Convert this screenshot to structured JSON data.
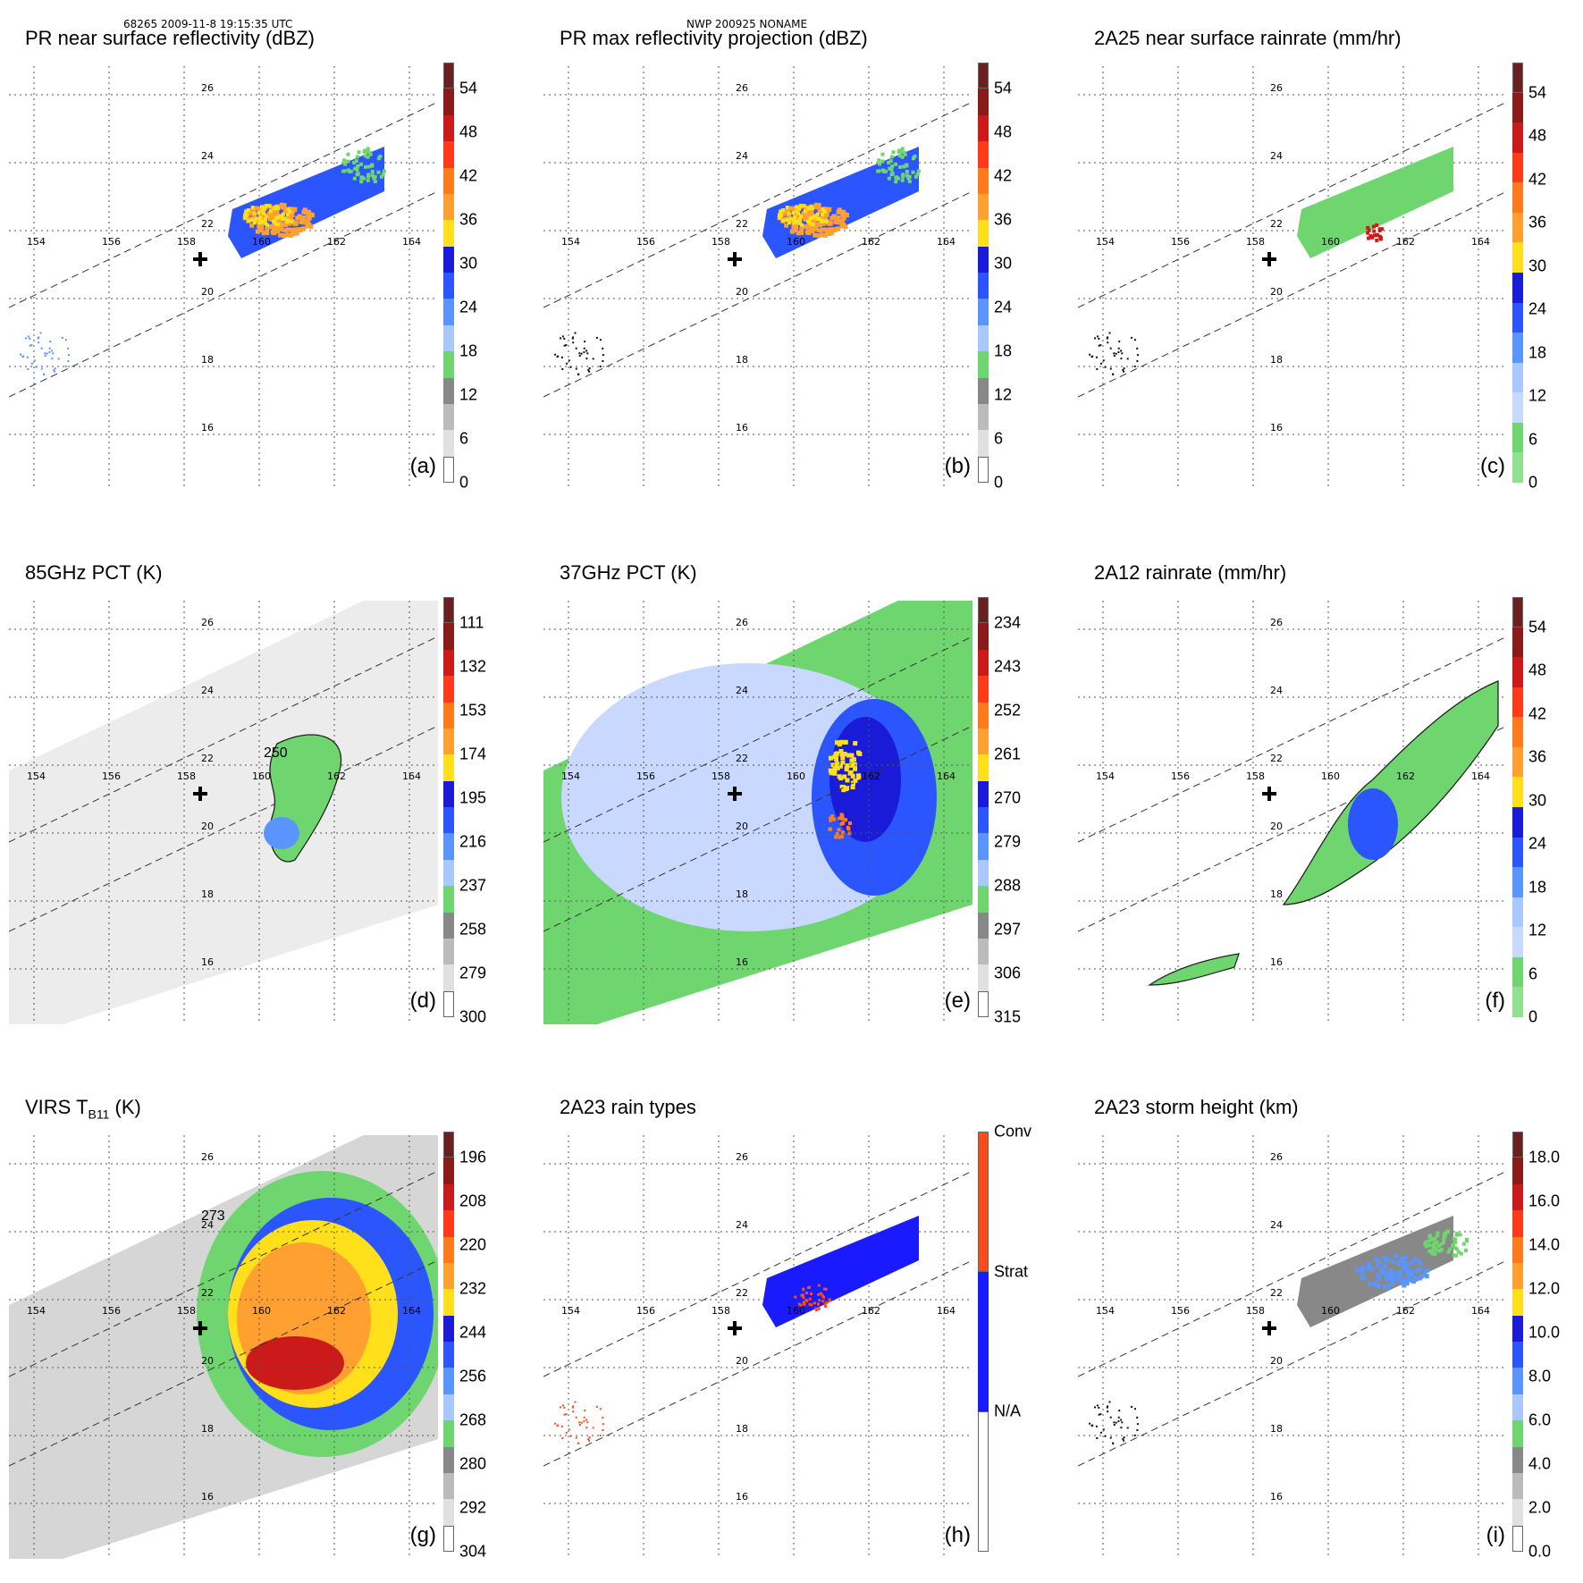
{
  "header": {
    "left": "68265 2009-11-8 19:15:35 UTC",
    "center": "NWP 200925 NONAME"
  },
  "axes": {
    "lon_labels": [
      "154",
      "156",
      "158",
      "160",
      "162",
      "164"
    ],
    "lat_labels": [
      "26",
      "24",
      "22",
      "20",
      "18",
      "16"
    ]
  },
  "panels": [
    {
      "id": "a",
      "title": "PR near surface reflectivity (dBZ)",
      "label": "(a)",
      "ticks": [
        "54",
        "48",
        "42",
        "36",
        "30",
        "24",
        "18",
        "12",
        "6",
        "0"
      ],
      "colors": [
        "#6b1f1f",
        "#8b1a1a",
        "#cc1a1a",
        "#ff3a1a",
        "#ff7a1a",
        "#ffa030",
        "#ffe01a",
        "#1a1ad9",
        "#2a55ff",
        "#5a95ff",
        "#a8c8ff",
        "#6fd66f",
        "#888888",
        "#bbbbbb",
        "#e0e0e0",
        "#ffffff"
      ]
    },
    {
      "id": "b",
      "title": "PR max reflectivity projection (dBZ)",
      "label": "(b)",
      "ticks": [
        "54",
        "48",
        "42",
        "36",
        "30",
        "24",
        "18",
        "12",
        "6",
        "0"
      ],
      "colors": [
        "#6b1f1f",
        "#8b1a1a",
        "#cc1a1a",
        "#ff3a1a",
        "#ff7a1a",
        "#ffa030",
        "#ffe01a",
        "#1a1ad9",
        "#2a55ff",
        "#5a95ff",
        "#a8c8ff",
        "#6fd66f",
        "#888888",
        "#bbbbbb",
        "#e0e0e0",
        "#ffffff"
      ]
    },
    {
      "id": "c",
      "title": "2A25 near surface rainrate (mm/hr)",
      "label": "(c)",
      "ticks": [
        "54",
        "48",
        "42",
        "36",
        "30",
        "24",
        "18",
        "12",
        "6",
        "0"
      ],
      "colors": [
        "#6b1f1f",
        "#8b1a1a",
        "#cc1a1a",
        "#ff3a1a",
        "#ff7a1a",
        "#ffa030",
        "#ffe01a",
        "#1a1ad9",
        "#2a55ff",
        "#5a95ff",
        "#a8c8ff",
        "#c8d8ff",
        "#6fd66f",
        "#8fe08f"
      ]
    },
    {
      "id": "d",
      "title": "85GHz PCT (K)",
      "label": "(d)",
      "ticks": [
        "111",
        "132",
        "153",
        "174",
        "195",
        "216",
        "237",
        "258",
        "279",
        "300"
      ],
      "colors": [
        "#6b1f1f",
        "#8b1a1a",
        "#cc1a1a",
        "#ff3a1a",
        "#ff7a1a",
        "#ffa030",
        "#ffe01a",
        "#1a1ad9",
        "#2a55ff",
        "#5a95ff",
        "#a8c8ff",
        "#6fd66f",
        "#888888",
        "#bbbbbb",
        "#e0e0e0",
        "#ffffff"
      ]
    },
    {
      "id": "e",
      "title": "37GHz PCT (K)",
      "label": "(e)",
      "ticks": [
        "234",
        "243",
        "252",
        "261",
        "270",
        "279",
        "288",
        "297",
        "306",
        "315"
      ],
      "colors": [
        "#6b1f1f",
        "#8b1a1a",
        "#cc1a1a",
        "#ff3a1a",
        "#ff7a1a",
        "#ffa030",
        "#ffe01a",
        "#1a1ad9",
        "#2a55ff",
        "#5a95ff",
        "#a8c8ff",
        "#6fd66f",
        "#888888",
        "#bbbbbb",
        "#e0e0e0",
        "#ffffff"
      ]
    },
    {
      "id": "f",
      "title": "2A12 rainrate (mm/hr)",
      "label": "(f)",
      "ticks": [
        "54",
        "48",
        "42",
        "36",
        "30",
        "24",
        "18",
        "12",
        "6",
        "0"
      ],
      "colors": [
        "#6b1f1f",
        "#8b1a1a",
        "#cc1a1a",
        "#ff3a1a",
        "#ff7a1a",
        "#ffa030",
        "#ffe01a",
        "#1a1ad9",
        "#2a55ff",
        "#5a95ff",
        "#a8c8ff",
        "#c8d8ff",
        "#6fd66f",
        "#8fe08f"
      ]
    },
    {
      "id": "g",
      "title_main": "VIRS T",
      "title_sub": "B11",
      "title_tail": " (K)",
      "label": "(g)",
      "ticks": [
        "196",
        "208",
        "220",
        "232",
        "244",
        "256",
        "268",
        "280",
        "292",
        "304"
      ],
      "colors": [
        "#6b1f1f",
        "#8b1a1a",
        "#cc1a1a",
        "#ff3a1a",
        "#ff7a1a",
        "#ffa030",
        "#ffe01a",
        "#1a1ad9",
        "#2a55ff",
        "#5a95ff",
        "#a8c8ff",
        "#6fd66f",
        "#888888",
        "#bbbbbb",
        "#e0e0e0",
        "#ffffff"
      ]
    },
    {
      "id": "h",
      "title": "2A23 rain types",
      "label": "(h)",
      "ticks": [
        "Conv",
        "Strat",
        "N/A"
      ],
      "colors": [
        "#ff4a1a",
        "#1a1aff",
        "#ffffff"
      ]
    },
    {
      "id": "i",
      "title": "2A23 storm height (km)",
      "label": "(i)",
      "ticks": [
        "18.0",
        "16.0",
        "14.0",
        "12.0",
        "10.0",
        "8.0",
        "6.0",
        "4.0",
        "2.0",
        "0.0"
      ],
      "colors": [
        "#6b1f1f",
        "#8b1a1a",
        "#cc1a1a",
        "#ff3a1a",
        "#ff7a1a",
        "#ffa030",
        "#ffe01a",
        "#1a1ad9",
        "#2a55ff",
        "#5a95ff",
        "#a8c8ff",
        "#6fd66f",
        "#888888",
        "#bbbbbb",
        "#e0e0e0",
        "#ffffff"
      ]
    }
  ],
  "contour_labels": {
    "d": "250",
    "g": "273"
  }
}
